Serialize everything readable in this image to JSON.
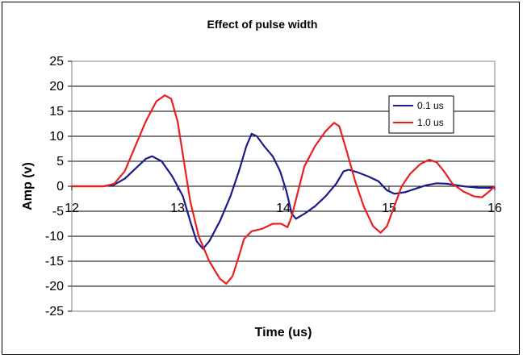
{
  "chart_data": {
    "type": "line",
    "title": "Effect of pulse width",
    "xlabel": "Time (us)",
    "ylabel": "Amp (v)",
    "xlim": [
      12,
      16
    ],
    "ylim": [
      -25,
      25
    ],
    "x_ticks": [
      12,
      13,
      14,
      15,
      16
    ],
    "y_ticks": [
      25,
      20,
      15,
      10,
      5,
      0,
      -5,
      -10,
      -15,
      -20,
      -25
    ],
    "grid": true,
    "legend_position": "right",
    "series": [
      {
        "name": "0.1 us",
        "color": "#1a1a8c",
        "points": [
          [
            12,
            0
          ],
          [
            12.3,
            0
          ],
          [
            12.4,
            0.3
          ],
          [
            12.5,
            1.5
          ],
          [
            12.6,
            3.5
          ],
          [
            12.7,
            5.5
          ],
          [
            12.76,
            6
          ],
          [
            12.85,
            5
          ],
          [
            12.95,
            2
          ],
          [
            13.05,
            -2
          ],
          [
            13.12,
            -7
          ],
          [
            13.18,
            -11
          ],
          [
            13.24,
            -12.5
          ],
          [
            13.3,
            -11
          ],
          [
            13.4,
            -7
          ],
          [
            13.5,
            -2
          ],
          [
            13.58,
            3
          ],
          [
            13.65,
            8
          ],
          [
            13.7,
            10.5
          ],
          [
            13.75,
            10
          ],
          [
            13.82,
            8
          ],
          [
            13.9,
            6
          ],
          [
            13.97,
            3
          ],
          [
            14.03,
            -1
          ],
          [
            14.08,
            -5.5
          ],
          [
            14.12,
            -6.5
          ],
          [
            14.2,
            -5.5
          ],
          [
            14.3,
            -4
          ],
          [
            14.4,
            -2
          ],
          [
            14.5,
            0.5
          ],
          [
            14.57,
            3
          ],
          [
            14.62,
            3.3
          ],
          [
            14.7,
            2.8
          ],
          [
            14.8,
            2
          ],
          [
            14.9,
            1
          ],
          [
            14.98,
            -0.8
          ],
          [
            15.05,
            -1.5
          ],
          [
            15.15,
            -1.2
          ],
          [
            15.25,
            -0.5
          ],
          [
            15.35,
            0.2
          ],
          [
            15.45,
            0.6
          ],
          [
            15.55,
            0.5
          ],
          [
            15.7,
            0
          ],
          [
            15.85,
            -0.3
          ],
          [
            16,
            -0.3
          ]
        ]
      },
      {
        "name": "1.0 us",
        "color": "#e82020",
        "points": [
          [
            12,
            0
          ],
          [
            12.3,
            0
          ],
          [
            12.4,
            0.5
          ],
          [
            12.5,
            3
          ],
          [
            12.6,
            8
          ],
          [
            12.7,
            13
          ],
          [
            12.8,
            17
          ],
          [
            12.88,
            18.2
          ],
          [
            12.94,
            17.5
          ],
          [
            13,
            13
          ],
          [
            13.06,
            5
          ],
          [
            13.12,
            -3
          ],
          [
            13.2,
            -10
          ],
          [
            13.3,
            -15
          ],
          [
            13.4,
            -18.5
          ],
          [
            13.46,
            -19.5
          ],
          [
            13.52,
            -18
          ],
          [
            13.58,
            -14
          ],
          [
            13.63,
            -10.5
          ],
          [
            13.7,
            -9
          ],
          [
            13.8,
            -8.5
          ],
          [
            13.9,
            -7.5
          ],
          [
            13.98,
            -7.5
          ],
          [
            14.04,
            -8.2
          ],
          [
            14.08,
            -6
          ],
          [
            14.14,
            -1
          ],
          [
            14.2,
            4
          ],
          [
            14.3,
            8
          ],
          [
            14.4,
            11
          ],
          [
            14.48,
            12.7
          ],
          [
            14.53,
            12
          ],
          [
            14.6,
            7
          ],
          [
            14.68,
            1
          ],
          [
            14.76,
            -4
          ],
          [
            14.85,
            -8
          ],
          [
            14.92,
            -9.3
          ],
          [
            14.98,
            -8
          ],
          [
            15.05,
            -4
          ],
          [
            15.12,
            0
          ],
          [
            15.2,
            2.5
          ],
          [
            15.3,
            4.5
          ],
          [
            15.38,
            5.3
          ],
          [
            15.45,
            4.8
          ],
          [
            15.52,
            3
          ],
          [
            15.6,
            0.5
          ],
          [
            15.7,
            -1
          ],
          [
            15.8,
            -2
          ],
          [
            15.88,
            -2.2
          ],
          [
            15.95,
            -1
          ],
          [
            16,
            0
          ]
        ]
      }
    ]
  }
}
